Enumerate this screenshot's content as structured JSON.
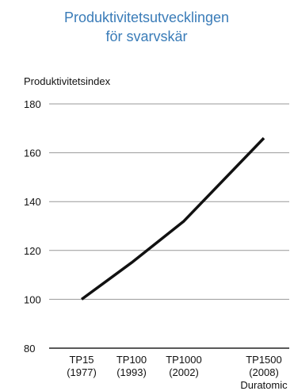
{
  "chart_data": {
    "type": "line",
    "title": "Produktivitetsutvecklingen för svarvskär",
    "title_lines": [
      "Produktivitetsutvecklingen",
      "för svarvskär"
    ],
    "ylabel": "Produktivitetsindex",
    "xlabel": "",
    "ylim": [
      80,
      180
    ],
    "yticks": [
      80,
      100,
      120,
      140,
      160,
      180
    ],
    "categories": [
      [
        "TP15",
        "(1977)"
      ],
      [
        "TP100",
        "(1993)"
      ],
      [
        "TP1000",
        "(2002)"
      ],
      [
        "TP1500",
        "(2008)",
        "Duratomic"
      ]
    ],
    "values": [
      100,
      115,
      132,
      166
    ],
    "grid": "horizontal",
    "colors": {
      "title": "#3a7cb8",
      "line": "#111111",
      "grid": "#999999"
    }
  }
}
